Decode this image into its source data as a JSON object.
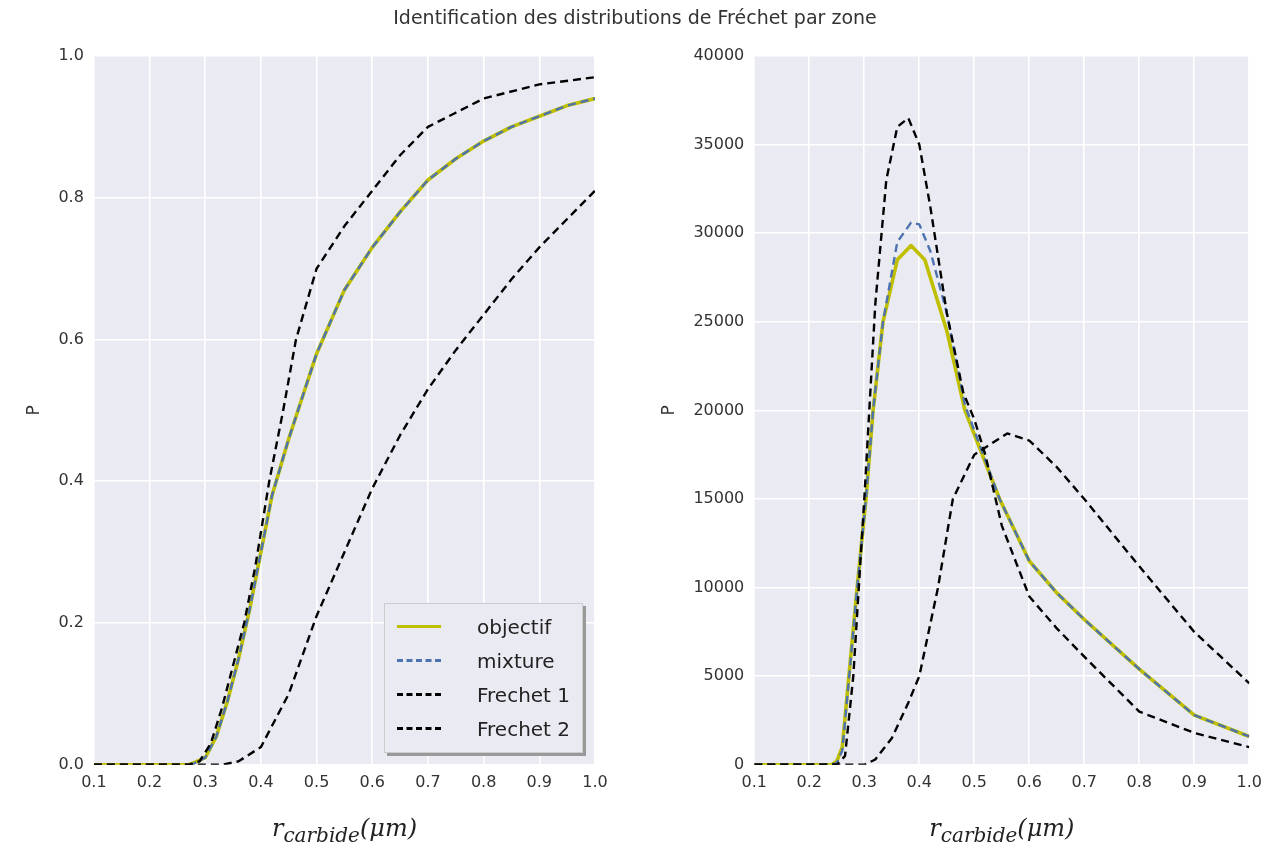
{
  "chart_data": [
    {
      "type": "line",
      "title": "Identification des distributions de Fréchet par zone",
      "xlabel": "r$_{carbide}$(μm)",
      "ylabel": "P",
      "xlim": [
        0.1,
        1.0
      ],
      "ylim": [
        0,
        1.0
      ],
      "xticks": [
        0.1,
        0.2,
        0.3,
        0.4,
        0.5,
        0.6,
        0.7,
        0.8,
        0.9,
        {
          "value": 1,
          "label": "1.0"
        }
      ],
      "yticks": [
        {
          "value": 0,
          "label": "0.0"
        },
        0.2,
        0.4,
        0.6,
        0.8,
        {
          "value": 1,
          "label": "1.0"
        }
      ],
      "grid": true,
      "legend": "bottom right",
      "marker": "none",
      "series": [
        {
          "name": "objectif",
          "color": "#bfbf00",
          "line_style": "solid",
          "x": [
            0.1,
            0.2,
            0.27,
            0.28,
            0.3,
            0.32,
            0.34,
            0.36,
            0.38,
            0.4,
            0.42,
            0.45,
            0.5,
            0.55,
            0.6,
            0.65,
            0.7,
            0.75,
            0.8,
            0.85,
            0.9,
            0.95,
            1.0
          ],
          "values": [
            0,
            0,
            0,
            0.003,
            0.01,
            0.04,
            0.09,
            0.15,
            0.22,
            0.3,
            0.38,
            0.46,
            0.58,
            0.67,
            0.73,
            0.78,
            0.825,
            0.855,
            0.88,
            0.9,
            0.915,
            0.93,
            0.94
          ]
        },
        {
          "name": "mixture",
          "color": "#4c72b0",
          "line_style": "dashed",
          "x": [
            0.27,
            0.28,
            0.3,
            0.32,
            0.34,
            0.36,
            0.38,
            0.4,
            0.42,
            0.45,
            0.5,
            0.55,
            0.6,
            0.65,
            0.7,
            0.75,
            0.8,
            0.85,
            0.9,
            0.95,
            1.0
          ],
          "values": [
            0,
            0.002,
            0.01,
            0.04,
            0.09,
            0.15,
            0.22,
            0.3,
            0.38,
            0.46,
            0.58,
            0.67,
            0.73,
            0.78,
            0.825,
            0.855,
            0.88,
            0.9,
            0.915,
            0.93,
            0.94
          ]
        },
        {
          "name": "Frechet 1",
          "color": "#000000",
          "line_style": "dashed",
          "x": [
            0.1,
            0.2,
            0.27,
            0.29,
            0.31,
            0.33,
            0.35,
            0.37,
            0.39,
            0.415,
            0.44,
            0.463,
            0.5,
            0.55,
            0.6,
            0.65,
            0.7,
            0.75,
            0.8,
            0.9,
            1.0
          ],
          "values": [
            0,
            0,
            0,
            0.005,
            0.03,
            0.08,
            0.14,
            0.2,
            0.28,
            0.4,
            0.5,
            0.6,
            0.7,
            0.76,
            0.81,
            0.86,
            0.9,
            0.92,
            0.94,
            0.96,
            0.97
          ]
        },
        {
          "name": "Frechet 2",
          "color": "#000000",
          "line_style": "dashed",
          "x": [
            0.1,
            0.2,
            0.33,
            0.36,
            0.4,
            0.45,
            0.5,
            0.55,
            0.6,
            0.65,
            0.7,
            0.75,
            0.8,
            0.85,
            0.9,
            0.95,
            1.0
          ],
          "values": [
            0,
            0,
            0,
            0.005,
            0.025,
            0.1,
            0.21,
            0.3,
            0.39,
            0.465,
            0.53,
            0.585,
            0.635,
            0.685,
            0.73,
            0.77,
            0.81
          ]
        }
      ]
    },
    {
      "type": "line",
      "xlabel": "r$_{carbide}$(μm)",
      "ylabel": "P",
      "xlim": [
        0.1,
        1.0
      ],
      "ylim": [
        0,
        40000
      ],
      "xticks": [
        0.1,
        0.2,
        0.3,
        0.4,
        0.5,
        0.6,
        0.7,
        0.8,
        0.9,
        {
          "value": 1,
          "label": "1.0"
        }
      ],
      "yticks": [
        0,
        5000,
        10000,
        15000,
        20000,
        25000,
        30000,
        35000,
        40000
      ],
      "grid": true,
      "marker": "none",
      "series": [
        {
          "color": "#bfbf00",
          "line_style": "solid",
          "x": [
            0.1,
            0.24,
            0.25,
            0.26,
            0.272,
            0.287,
            0.303,
            0.316,
            0.334,
            0.36,
            0.385,
            0.41,
            0.45,
            0.483,
            0.546,
            0.6,
            0.65,
            0.7,
            0.8,
            0.9,
            1.0
          ],
          "values": [
            0,
            0,
            200,
            1000,
            5000,
            10000,
            15000,
            20000,
            25000,
            28500,
            29300,
            28500,
            24500,
            20000,
            15000,
            11500,
            9700,
            8200,
            5400,
            2800,
            1600
          ]
        },
        {
          "color": "#4c72b0",
          "line_style": "dashed",
          "x": [
            0.1,
            0.24,
            0.25,
            0.26,
            0.272,
            0.287,
            0.303,
            0.316,
            0.334,
            0.36,
            0.385,
            0.4,
            0.42,
            0.45,
            0.483,
            0.546,
            0.6,
            0.65,
            0.7,
            0.8,
            0.9,
            1.0
          ],
          "values": [
            0,
            0,
            100,
            800,
            4800,
            10000,
            15000,
            20000,
            25000,
            29500,
            30600,
            30500,
            29000,
            25500,
            20300,
            15000,
            11500,
            9700,
            8200,
            5400,
            2800,
            1600
          ]
        },
        {
          "color": "#000000",
          "line_style": "dashed",
          "x": [
            0.1,
            0.25,
            0.265,
            0.28,
            0.3,
            0.32,
            0.34,
            0.36,
            0.38,
            0.4,
            0.42,
            0.45,
            0.48,
            0.5,
            0.52,
            0.55,
            0.6,
            0.65,
            0.7,
            0.8,
            0.9,
            1.0
          ],
          "values": [
            0,
            0,
            500,
            5000,
            15000,
            26000,
            33000,
            36000,
            36500,
            35000,
            31500,
            25500,
            21000,
            19500,
            17500,
            13500,
            9500,
            7700,
            6100,
            3000,
            1800,
            1000
          ]
        },
        {
          "color": "#000000",
          "line_style": "dashed",
          "x": [
            0.1,
            0.3,
            0.32,
            0.35,
            0.38,
            0.4,
            0.434,
            0.461,
            0.5,
            0.56,
            0.6,
            0.65,
            0.7,
            0.8,
            0.9,
            1.0
          ],
          "values": [
            0,
            0,
            300,
            1500,
            3500,
            5000,
            10000,
            15000,
            17500,
            18700,
            18300,
            16800,
            15000,
            11200,
            7500,
            4600
          ]
        }
      ]
    }
  ]
}
